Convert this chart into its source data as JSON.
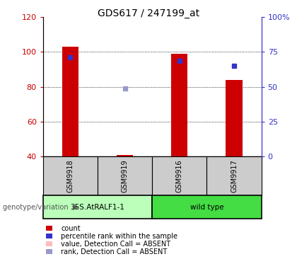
{
  "title": "GDS617 / 247199_at",
  "samples": [
    "GSM9918",
    "GSM9919",
    "GSM9916",
    "GSM9917"
  ],
  "group_labels": [
    "35S.AtRALF1-1",
    "wild type"
  ],
  "ylim_left": [
    40,
    120
  ],
  "ylim_right": [
    0,
    100
  ],
  "yticks_left": [
    40,
    60,
    80,
    100,
    120
  ],
  "yticks_right": [
    0,
    25,
    50,
    75,
    100
  ],
  "ytick_labels_right": [
    "0",
    "25",
    "50",
    "75",
    "100%"
  ],
  "red_bar_values": [
    103,
    41,
    99,
    84
  ],
  "red_bar_bottom": 40,
  "blue_sq_pct": [
    71.25,
    null,
    68.75,
    65.0
  ],
  "light_blue_sq_pct": [
    null,
    48.75,
    null,
    null
  ],
  "bar_color": "#cc0000",
  "blue_color": "#3333cc",
  "light_blue_color": "#9999cc",
  "group_color_1": "#bbffbb",
  "group_color_2": "#44dd44",
  "sample_box_color": "#cccccc",
  "legend_items": [
    {
      "color": "#cc0000",
      "label": "count"
    },
    {
      "color": "#3333cc",
      "label": "percentile rank within the sample"
    },
    {
      "color": "#ffbbbb",
      "label": "value, Detection Call = ABSENT"
    },
    {
      "color": "#9999cc",
      "label": "rank, Detection Call = ABSENT"
    }
  ],
  "left_yaxis_color": "#cc0000",
  "right_yaxis_color": "#3333cc",
  "xlabel_genotype": "genotype/variation"
}
